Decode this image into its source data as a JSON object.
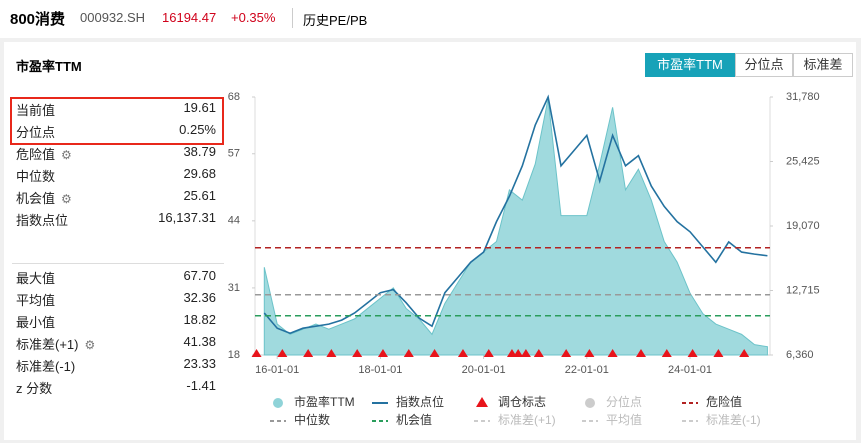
{
  "header": {
    "name": "800消费",
    "code": "000932.SH",
    "price": "16194.47",
    "change": "+0.35%",
    "tab": "历史PE/PB"
  },
  "panel": {
    "title": "市盈率TTM",
    "buttons": [
      "市盈率TTM",
      "分位点",
      "标准差"
    ]
  },
  "stats": [
    {
      "label": "当前值",
      "value": "19.61"
    },
    {
      "label": "分位点",
      "value": "0.25%"
    },
    {
      "label": "危险值",
      "value": "38.79"
    },
    {
      "label": "中位数",
      "value": "29.68"
    },
    {
      "label": "机会值",
      "value": "25.61"
    },
    {
      "label": "指数点位",
      "value": "16,137.31"
    },
    {
      "label": "最大值",
      "value": "67.70"
    },
    {
      "label": "平均值",
      "value": "32.36"
    },
    {
      "label": "最小值",
      "value": "18.82"
    },
    {
      "label": "标准差(+1)",
      "value": "41.38"
    },
    {
      "label": "标准差(-1)",
      "value": "23.33"
    },
    {
      "label": "z 分数",
      "value": "-1.41"
    }
  ],
  "chart_data": {
    "type": "line",
    "x": [
      15.75,
      16,
      16.25,
      16.5,
      16.75,
      17,
      17.25,
      17.5,
      17.75,
      18,
      18.25,
      18.5,
      18.75,
      19,
      19.25,
      19.5,
      19.75,
      20,
      20.25,
      20.5,
      20.75,
      21,
      21.25,
      21.5,
      21.75,
      22,
      22.25,
      22.5,
      22.75,
      23,
      23.25,
      23.5,
      23.75,
      24,
      24.25,
      24.5,
      24.75,
      25,
      25.25,
      25.5
    ],
    "xlim": [
      15.57,
      25.55
    ],
    "xticks": [
      {
        "value": 16,
        "label": "16-01-01"
      },
      {
        "value": 18,
        "label": "18-01-01"
      },
      {
        "value": 20,
        "label": "20-01-01"
      },
      {
        "value": 22,
        "label": "22-01-01"
      },
      {
        "value": 24,
        "label": "24-01-01"
      }
    ],
    "ylim": [
      18,
      68
    ],
    "yticks": [
      18,
      31,
      44,
      57,
      68
    ],
    "y2lim": [
      6360,
      31780
    ],
    "y2ticks": [
      {
        "value": 6360,
        "label": "6,360"
      },
      {
        "value": 12715,
        "label": "12,715"
      },
      {
        "value": 19070,
        "label": "19,070"
      },
      {
        "value": 25425,
        "label": "25,425"
      },
      {
        "value": 31780,
        "label": "31,780"
      }
    ],
    "series": [
      {
        "name": "市盈率TTM",
        "color": "#8fd3d8",
        "fill": true,
        "visible": true,
        "values": [
          35,
          24,
          22,
          23,
          24,
          23,
          24,
          25,
          27,
          29,
          31,
          27,
          25,
          22,
          28,
          32,
          36,
          38,
          40,
          50,
          48,
          55,
          67.7,
          45,
          45,
          45,
          55,
          66,
          50,
          54,
          48,
          40,
          36,
          30,
          26,
          24,
          23,
          22,
          20,
          19.61
        ]
      },
      {
        "name": "指数点位",
        "color": "#2472a0",
        "axis": "y2",
        "visible": true,
        "values": [
          10500,
          9000,
          8500,
          9000,
          9200,
          9400,
          9800,
          10500,
          11500,
          12500,
          12800,
          11500,
          10000,
          9200,
          12500,
          14000,
          15500,
          16500,
          19500,
          22000,
          25000,
          29000,
          31780,
          25000,
          26500,
          28000,
          23500,
          28000,
          25000,
          26000,
          23000,
          21000,
          19500,
          18500,
          17000,
          15500,
          17500,
          16500,
          16300,
          16137.31
        ]
      }
    ],
    "markers": {
      "name": "调仓标志",
      "color": "#e8141b",
      "x": [
        15.6,
        16.1,
        16.6,
        17.05,
        17.55,
        18.05,
        18.55,
        19.05,
        19.6,
        20.1,
        20.55,
        20.67,
        20.82,
        21.07,
        21.6,
        22.05,
        22.5,
        23.05,
        23.55,
        24.05,
        24.55,
        25.05
      ]
    },
    "reference_lines": [
      {
        "name": "分位点",
        "visible": false
      },
      {
        "name": "危险值",
        "value": 38.79,
        "color": "#b22222",
        "visible": true
      },
      {
        "name": "中位数",
        "value": 29.68,
        "color": "#999999",
        "visible": true
      },
      {
        "name": "机会值",
        "value": 25.61,
        "color": "#2a9d5c",
        "visible": true
      },
      {
        "name": "标准差(+1)",
        "value": 41.38,
        "color": "#999999",
        "visible": false
      },
      {
        "name": "平均值",
        "value": 32.36,
        "color": "#999999",
        "visible": false
      },
      {
        "name": "标准差(-1)",
        "value": 23.33,
        "color": "#999999",
        "visible": false
      }
    ]
  }
}
